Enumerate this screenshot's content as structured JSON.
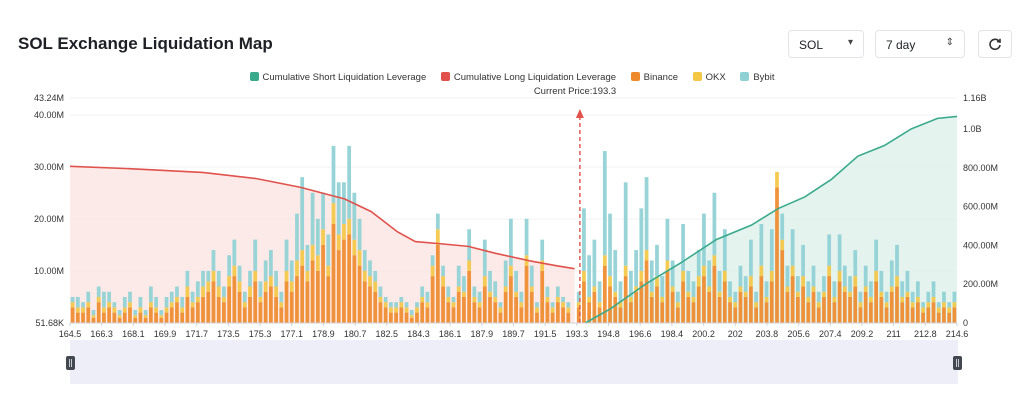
{
  "header": {
    "title": "SOL Exchange Liquidation Map",
    "symbol_select": "SOL",
    "range_select": "7 day",
    "refresh_icon": "refresh-icon"
  },
  "colors": {
    "short_line": "#3aaa8c",
    "long_line": "#e0524b",
    "binance": "#ee8a2b",
    "okx": "#f3c744",
    "bybit": "#8fd0d4",
    "price_line": "#e0524b"
  },
  "chart_data": {
    "type": "bar",
    "title": "SOL Exchange Liquidation Map",
    "current_price_label": "Current Price:193.3",
    "current_price": 193.3,
    "legend": [
      {
        "name": "Cumulative Short Liquidation Leverage",
        "color": "#3aaa8c"
      },
      {
        "name": "Cumulative Long Liquidation Leverage",
        "color": "#e0524b"
      },
      {
        "name": "Binance",
        "color": "#ee8a2b"
      },
      {
        "name": "OKX",
        "color": "#f3c744"
      },
      {
        "name": "Bybit",
        "color": "#8fd0d4"
      }
    ],
    "x_ticks": [
      "164.5",
      "166.3",
      "168.1",
      "169.9",
      "171.7",
      "173.5",
      "175.3",
      "177.1",
      "178.9",
      "180.7",
      "182.5",
      "184.3",
      "186.1",
      "187.9",
      "189.7",
      "191.5",
      "193.3",
      "194.8",
      "196.6",
      "198.4",
      "200.2",
      "202",
      "203.8",
      "205.6",
      "207.4",
      "209.2",
      "211",
      "212.8",
      "214.6"
    ],
    "y_left_ticks": [
      "51.68K",
      "10.00M",
      "20.00M",
      "30.00M",
      "40.00M",
      "43.24M"
    ],
    "y_left_range": [
      0.05168,
      43.24
    ],
    "y_right_ticks": [
      "0",
      "200.00M",
      "400.00M",
      "600.00M",
      "800.00M",
      "1.0B",
      "1.16B"
    ],
    "y_right_range": [
      0,
      1160
    ],
    "x_range": [
      164.5,
      214.6
    ],
    "cumulative_long": [
      [
        164.5,
        808
      ],
      [
        168,
        795
      ],
      [
        172,
        776
      ],
      [
        175,
        745
      ],
      [
        177.5,
        700
      ],
      [
        180,
        640
      ],
      [
        181.5,
        575
      ],
      [
        183,
        470
      ],
      [
        184,
        420
      ],
      [
        185.5,
        408
      ],
      [
        187,
        395
      ],
      [
        188.5,
        360
      ],
      [
        190.5,
        320
      ],
      [
        192,
        295
      ],
      [
        193.0,
        280
      ]
    ],
    "cumulative_short": [
      [
        193.6,
        0
      ],
      [
        195,
        72
      ],
      [
        197,
        200
      ],
      [
        199,
        310
      ],
      [
        201,
        430
      ],
      [
        203,
        505
      ],
      [
        204.5,
        590
      ],
      [
        206,
        650
      ],
      [
        207.5,
        740
      ],
      [
        209,
        860
      ],
      [
        210.5,
        915
      ],
      [
        212,
        1000
      ],
      [
        213.5,
        1055
      ],
      [
        214.6,
        1065
      ]
    ],
    "series": [
      {
        "name": "Binance",
        "values": [
          3,
          2,
          2,
          3,
          1,
          4,
          2,
          3,
          2,
          1,
          2,
          3,
          1,
          2,
          1,
          3,
          2,
          1,
          2,
          3,
          4,
          2,
          5,
          3,
          4,
          5,
          6,
          8,
          5,
          4,
          7,
          9,
          6,
          3,
          5,
          8,
          4,
          6,
          7,
          5,
          3,
          8,
          6,
          9,
          11,
          8,
          12,
          10,
          15,
          9,
          19,
          14,
          16,
          17,
          13,
          11,
          8,
          7,
          6,
          4,
          3,
          2,
          2,
          3,
          2,
          1,
          2,
          4,
          3,
          9,
          15,
          7,
          4,
          3,
          6,
          5,
          10,
          4,
          3,
          7,
          5,
          4,
          2,
          6,
          9,
          5,
          3,
          11,
          6,
          2,
          10,
          4,
          2,
          4,
          3,
          2,
          0,
          3,
          8,
          4,
          6,
          3,
          11,
          7,
          5,
          3,
          9,
          4,
          6,
          8,
          12,
          5,
          7,
          4,
          10,
          6,
          3,
          8,
          5,
          4,
          7,
          9,
          6,
          11,
          5,
          8,
          4,
          3,
          6,
          5,
          7,
          3,
          9,
          4,
          8,
          26,
          14,
          6,
          9,
          5,
          7,
          4,
          6,
          3,
          5,
          9,
          4,
          8,
          6,
          5,
          7,
          3,
          6,
          4,
          8,
          5,
          3,
          6,
          7,
          4,
          5,
          3,
          4,
          2,
          3,
          4,
          2,
          3,
          2,
          3
        ]
      },
      {
        "name": "OKX",
        "values": [
          1,
          1,
          1,
          1,
          0.5,
          1,
          1,
          1,
          1,
          0.5,
          1,
          1,
          0.5,
          1,
          0.5,
          1,
          1,
          0.5,
          1,
          1,
          1,
          1,
          2,
          1,
          1,
          2,
          2,
          2,
          2,
          1,
          2,
          2,
          2,
          1,
          2,
          2,
          1,
          2,
          2,
          2,
          1,
          2,
          2,
          3,
          3,
          2,
          3,
          3,
          3,
          2,
          4,
          3,
          3,
          3,
          3,
          3,
          2,
          2,
          2,
          1,
          1,
          1,
          1,
          1,
          1,
          0.5,
          1,
          1,
          1,
          2,
          3,
          2,
          1,
          1,
          1,
          1,
          2,
          1,
          1,
          2,
          1,
          1,
          1,
          1,
          2,
          1,
          1,
          2,
          1,
          1,
          2,
          1,
          1,
          1,
          1,
          1,
          0,
          1,
          2,
          1,
          1,
          1,
          2,
          2,
          1,
          1,
          2,
          1,
          1,
          2,
          2,
          1,
          2,
          1,
          2,
          1,
          1,
          2,
          1,
          1,
          2,
          2,
          1,
          2,
          1,
          2,
          1,
          1,
          1,
          1,
          2,
          1,
          2,
          1,
          2,
          3,
          2,
          1,
          2,
          1,
          2,
          1,
          1,
          1,
          1,
          2,
          1,
          2,
          1,
          1,
          2,
          1,
          1,
          1,
          2,
          1,
          1,
          1,
          2,
          1,
          1,
          1,
          1,
          1,
          1,
          1,
          1,
          1,
          1,
          1
        ]
      },
      {
        "name": "Bybit",
        "values": [
          1,
          2,
          1,
          2,
          1,
          2,
          3,
          2,
          1,
          1,
          2,
          2,
          1,
          2,
          1,
          3,
          2,
          1,
          2,
          2,
          2,
          2,
          3,
          2,
          3,
          3,
          2,
          4,
          3,
          2,
          4,
          5,
          3,
          2,
          3,
          6,
          3,
          4,
          5,
          3,
          2,
          6,
          4,
          9,
          14,
          5,
          10,
          7,
          7,
          6,
          11,
          10,
          8,
          14,
          9,
          6,
          4,
          3,
          2,
          2,
          1,
          1,
          1,
          1,
          1,
          1,
          1,
          2,
          2,
          2,
          3,
          2,
          2,
          1,
          4,
          3,
          6,
          2,
          2,
          7,
          4,
          3,
          1,
          5,
          9,
          4,
          2,
          7,
          4,
          1,
          4,
          2,
          1,
          2,
          1,
          1,
          0,
          2,
          12,
          8,
          9,
          4,
          20,
          12,
          8,
          4,
          16,
          5,
          7,
          12,
          14,
          6,
          6,
          4,
          8,
          5,
          2,
          9,
          4,
          3,
          5,
          10,
          5,
          12,
          4,
          8,
          3,
          2,
          4,
          3,
          7,
          2,
          8,
          3,
          8,
          0,
          5,
          4,
          7,
          3,
          6,
          3,
          4,
          2,
          3,
          6,
          3,
          7,
          4,
          3,
          5,
          2,
          4,
          3,
          6,
          4,
          2,
          5,
          6,
          3,
          4,
          2,
          3,
          1,
          2,
          3,
          1,
          2,
          1,
          2
        ]
      }
    ]
  },
  "slider": {
    "left_handle": "range-start-handle",
    "right_handle": "range-end-handle"
  }
}
